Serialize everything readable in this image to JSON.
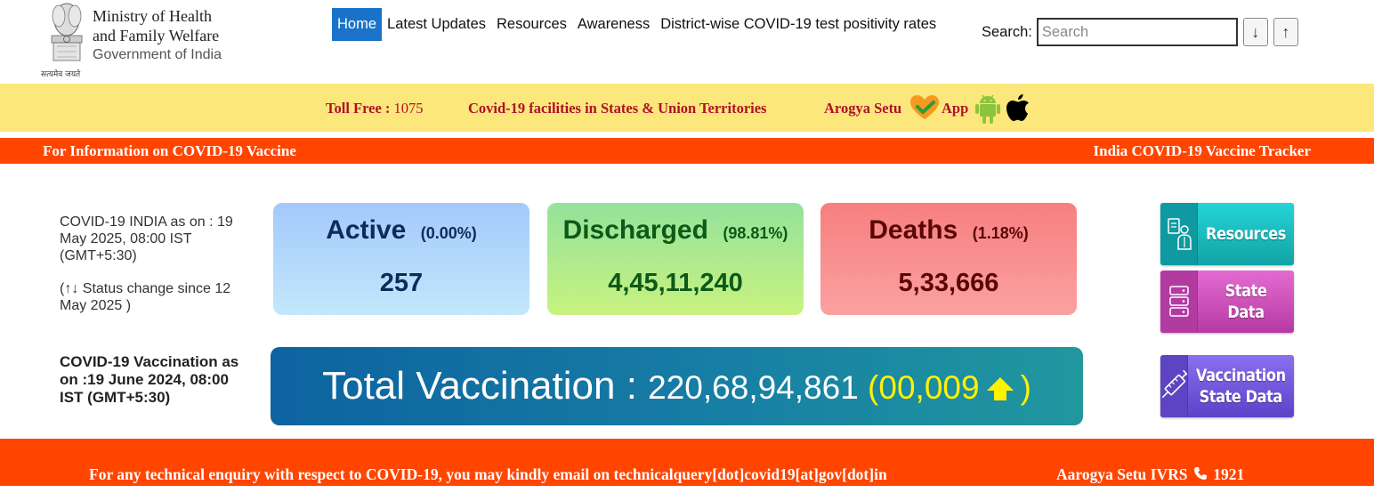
{
  "header": {
    "ministry_line1": "Ministry of Health",
    "ministry_line2": "and Family Welfare",
    "ministry_line3": "Government of India",
    "emblem_motto": "सत्यमेव जयते",
    "emblem_icon": "ashoka-emblem-icon"
  },
  "nav": {
    "items": [
      {
        "label": "Home",
        "active": true
      },
      {
        "label": "Latest Updates"
      },
      {
        "label": "Resources"
      },
      {
        "label": "Awareness"
      },
      {
        "label": "District-wise COVID-19 test positivity rates"
      }
    ]
  },
  "search": {
    "label": "Search:",
    "placeholder": "Search",
    "down_label": "↓",
    "up_label": "↑"
  },
  "info_bar": {
    "toll_free_label": "Toll Free :",
    "toll_free_number": "1075",
    "facilities_link": "Covid-19 facilities in States & Union Territories",
    "arogya_label": "Arogya Setu",
    "app_label": "App",
    "icons": [
      "heart-check-icon",
      "android-icon",
      "apple-icon"
    ]
  },
  "orange_bar": {
    "left": "For Information on COVID-19 Vaccine",
    "right": "India COVID-19 Vaccine Tracker"
  },
  "status": {
    "as_on": "COVID-19 INDIA as on : 19 May 2025, 08:00 IST (GMT+5:30)",
    "change_note": "(↑↓ Status change since 12 May 2025 )"
  },
  "cards": {
    "active": {
      "title": "Active",
      "pct": "(0.00%)",
      "value": "257"
    },
    "discharged": {
      "title": "Discharged",
      "pct": "(98.81%)",
      "value": "4,45,11,240"
    },
    "deaths": {
      "title": "Deaths",
      "pct": "(1.18%)",
      "value": "5,33,666"
    }
  },
  "vaccination": {
    "note": "COVID-19 Vaccination as on :19 June 2024, 08:00 IST (GMT+5:30)",
    "label": "Total Vaccination : ",
    "total": "220,68,94,861",
    "delta_open": " (00,009",
    "delta_close": ")"
  },
  "side_buttons": {
    "resources": "Resources",
    "state_data": "State Data",
    "vaccination_state_data": "Vaccination\nState Data"
  },
  "footer": {
    "enquiry": "For any technical enquiry with respect to COVID-19, you may kindly email on technicalquery[dot]covid19[at]gov[dot]in",
    "ivrs_label": "Aarogya Setu IVRS",
    "ivrs_number": "1921"
  },
  "colors": {
    "nav_active": "#1a73c8",
    "info_bar": "#fbe77b",
    "orange_bar": "#ff4500",
    "info_text": "#b0102a",
    "delta_yellow": "#fff200"
  }
}
